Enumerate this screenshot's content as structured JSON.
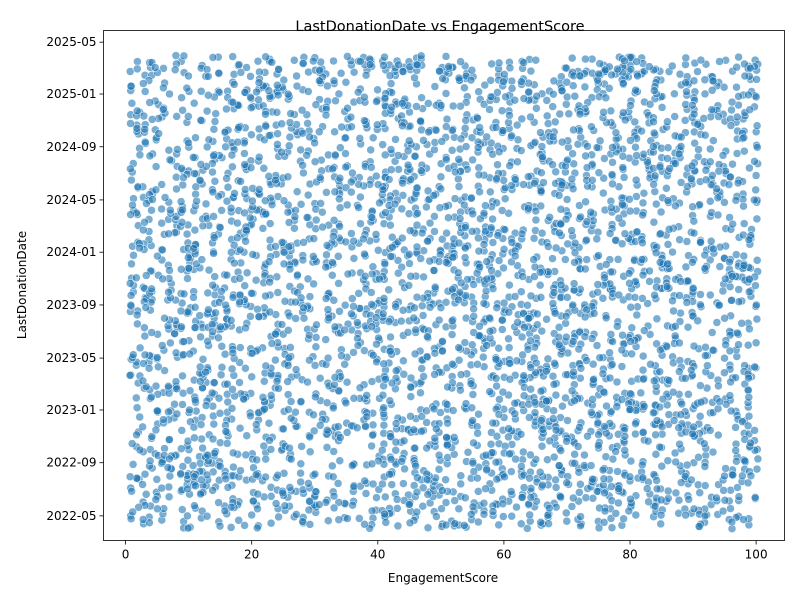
{
  "chart_data": {
    "type": "scatter",
    "title": "LastDonationDate vs EngagementScore",
    "xlabel": "EngagementScore",
    "ylabel": "LastDonationDate",
    "xlim": [
      -3.5,
      104.5
    ],
    "ylim": [
      "2022-03-05",
      "2025-05-28"
    ],
    "x_ticks": [
      0,
      20,
      40,
      60,
      80,
      100
    ],
    "x_tick_labels": [
      "0",
      "20",
      "40",
      "60",
      "80",
      "100"
    ],
    "y_ticks": [
      "2022-05-01",
      "2022-09-01",
      "2023-01-01",
      "2023-05-01",
      "2023-09-01",
      "2024-01-01",
      "2024-05-01",
      "2024-09-01",
      "2025-01-01",
      "2025-05-01"
    ],
    "y_tick_labels": [
      "2022-05",
      "2022-09",
      "2023-01",
      "2023-05",
      "2023-09",
      "2024-01",
      "2024-05",
      "2024-09",
      "2025-01",
      "2025-05"
    ],
    "x_range": [
      1,
      100
    ],
    "date_range": [
      "2022-04-01",
      "2025-03-31"
    ],
    "point_count": 4000,
    "marker_color": "#1f77b4",
    "marker_alpha": 0.6,
    "edge_color": "#ffffff",
    "grid": false,
    "legend": "none",
    "series": [
      {
        "sample_points": [
          {
            "x": 1,
            "y": "2025-03-15"
          },
          {
            "x": 1,
            "y": "2024-09-20"
          },
          {
            "x": 1,
            "y": "2022-04-10"
          },
          {
            "x": 12,
            "y": "2024-02-14"
          },
          {
            "x": 25,
            "y": "2023-06-10"
          },
          {
            "x": 40,
            "y": "2022-06-15"
          },
          {
            "x": 50,
            "y": "2025-03-20"
          },
          {
            "x": 50,
            "y": "2022-04-02"
          },
          {
            "x": 63,
            "y": "2024-07-01"
          },
          {
            "x": 76,
            "y": "2023-02-11"
          },
          {
            "x": 88,
            "y": "2022-10-22"
          },
          {
            "x": 100,
            "y": "2025-03-10"
          },
          {
            "x": 100,
            "y": "2023-08-01"
          },
          {
            "x": 100,
            "y": "2022-04-05"
          }
        ]
      }
    ]
  }
}
